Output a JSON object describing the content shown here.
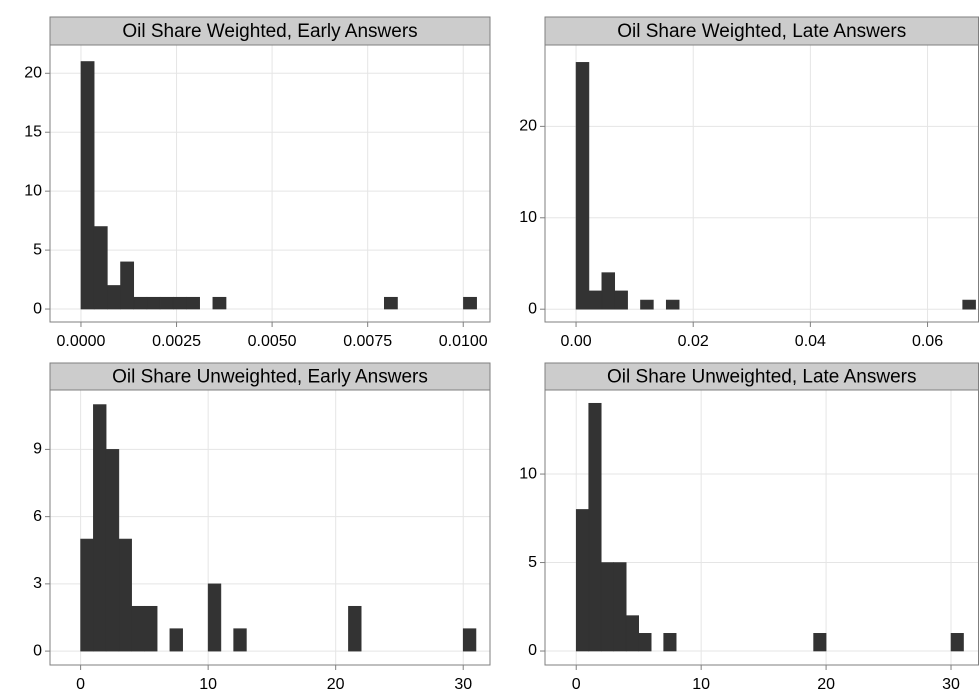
{
  "chart_data": [
    {
      "type": "histogram",
      "title": "Oil Share Weighted, Early Answers",
      "color": "#333333",
      "grid": true,
      "bins": [
        -0.000345,
        0,
        0.000345,
        0.00069,
        0.001035,
        0.00138,
        0.001725,
        0.00207,
        0.002415,
        0.00276,
        0.003105,
        0.00345,
        0.003795,
        0.00414,
        0.004485,
        0.00483,
        0.005175,
        0.00552,
        0.005865,
        0.00621,
        0.006555,
        0.0069,
        0.007245,
        0.00759,
        0.007935,
        0.00828,
        0.008625,
        0.00897,
        0.009315,
        0.00966,
        0.010005,
        0.01035
      ],
      "values": [
        0,
        21,
        7,
        2,
        4,
        1,
        1,
        1,
        1,
        1,
        0,
        1,
        0,
        0,
        0,
        0,
        0,
        0,
        0,
        0,
        0,
        0,
        0,
        0,
        1,
        0,
        0,
        0,
        0,
        0,
        1
      ],
      "xlim": [
        -0.00081,
        0.0107
      ],
      "ylim": [
        -1.1,
        22.4
      ],
      "xticks": [
        {
          "value": 0,
          "label": "0.0000"
        },
        {
          "value": 0.0025,
          "label": "0.0025"
        },
        {
          "value": 0.005,
          "label": "0.0050"
        },
        {
          "value": 0.0075,
          "label": "0.0075"
        },
        {
          "value": 0.01,
          "label": "0.0100"
        }
      ],
      "yticks": [
        0,
        5,
        10,
        15,
        20
      ]
    },
    {
      "type": "histogram",
      "title": "Oil Share Weighted, Late Answers",
      "color": "#333333",
      "grid": true,
      "bins": [
        -0.0022,
        0,
        0.0022,
        0.0044,
        0.0066,
        0.0088,
        0.011,
        0.0132,
        0.0154,
        0.0176,
        0.0198,
        0.022,
        0.0242,
        0.0264,
        0.0286,
        0.0308,
        0.033,
        0.0352,
        0.0374,
        0.0396,
        0.0418,
        0.044,
        0.0462,
        0.0484,
        0.0506,
        0.0528,
        0.055,
        0.0572,
        0.0594,
        0.0616,
        0.0638,
        0.066,
        0.0682
      ],
      "values": [
        0,
        27,
        2,
        4,
        2,
        0,
        1,
        0,
        1,
        0,
        0,
        0,
        0,
        0,
        0,
        0,
        0,
        0,
        0,
        0,
        0,
        0,
        0,
        0,
        0,
        0,
        0,
        0,
        0,
        0,
        0,
        1
      ],
      "xlim": [
        -0.0053,
        0.0687
      ],
      "ylim": [
        -1.4,
        28.9
      ],
      "xticks": [
        {
          "value": 0,
          "label": "0.00"
        },
        {
          "value": 0.02,
          "label": "0.02"
        },
        {
          "value": 0.04,
          "label": "0.04"
        },
        {
          "value": 0.06,
          "label": "0.06"
        }
      ],
      "yticks": [
        0,
        10,
        20
      ]
    },
    {
      "type": "histogram",
      "title": "Oil Share Unweighted, Early Answers",
      "color": "#333333",
      "grid": true,
      "bins": [
        -1,
        0,
        1,
        2,
        3,
        4,
        5,
        6,
        7,
        8,
        9,
        10,
        11,
        12,
        13,
        14,
        15,
        16,
        17,
        18,
        19,
        20,
        21,
        22,
        23,
        24,
        25,
        26,
        27,
        28,
        29,
        30,
        31
      ],
      "values": [
        0,
        5,
        11,
        9,
        5,
        2,
        2,
        0,
        1,
        0,
        0,
        3,
        0,
        1,
        0,
        0,
        0,
        0,
        0,
        0,
        0,
        0,
        2,
        0,
        0,
        0,
        0,
        0,
        0,
        0,
        0,
        1
      ],
      "xlim": [
        -2.4,
        32.1
      ],
      "ylim": [
        -0.62,
        11.65
      ],
      "xticks": [
        0,
        10,
        20,
        30
      ],
      "yticks": [
        0,
        3,
        6,
        9
      ]
    },
    {
      "type": "histogram",
      "title": "Oil Share Unweighted, Late Answers",
      "color": "#333333",
      "grid": true,
      "bins": [
        -1,
        0,
        1,
        2,
        3,
        4,
        5,
        6,
        7,
        8,
        9,
        10,
        11,
        12,
        13,
        14,
        15,
        16,
        17,
        18,
        19,
        20,
        21,
        22,
        23,
        24,
        25,
        26,
        27,
        28,
        29,
        30,
        31
      ],
      "values": [
        0,
        8,
        14,
        5,
        5,
        2,
        1,
        0,
        1,
        0,
        0,
        0,
        0,
        0,
        0,
        0,
        0,
        0,
        0,
        0,
        1,
        0,
        0,
        0,
        0,
        0,
        0,
        0,
        0,
        0,
        0,
        1
      ],
      "xlim": [
        -2.5,
        32.2
      ],
      "ylim": [
        -0.79,
        14.75
      ],
      "xticks": [
        0,
        10,
        20,
        30
      ],
      "yticks": [
        0,
        5,
        10
      ]
    }
  ]
}
